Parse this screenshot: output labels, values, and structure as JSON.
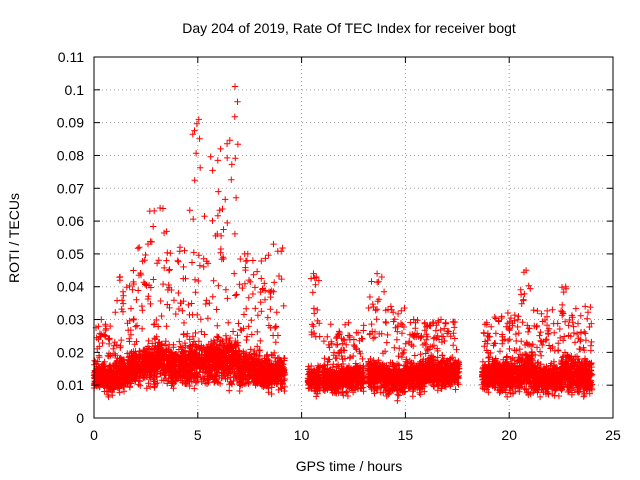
{
  "chart_data": {
    "type": "scatter",
    "title": "Day 204 of 2019, Rate Of TEC Index for receiver bogt",
    "xlabel": "GPS time / hours",
    "ylabel": "ROTI / TECUs",
    "xlim": [
      0,
      25
    ],
    "ylim": [
      0,
      0.11
    ],
    "x_ticks": [
      "0",
      "5",
      "10",
      "15",
      "20",
      "25"
    ],
    "y_ticks": [
      "0",
      "0.01",
      "0.02",
      "0.03",
      "0.04",
      "0.05",
      "0.06",
      "0.07",
      "0.08",
      "0.09",
      "0.1",
      "0.11"
    ],
    "grid": true,
    "marker": "+",
    "color": "#ff0000",
    "series": [
      {
        "clusters": [
          {
            "x": [
              0.0,
              0.6
            ],
            "median": 0.013,
            "spread": 0.008,
            "max": 0.03
          },
          {
            "x": [
              0.6,
              1.0
            ],
            "median": 0.012,
            "spread": 0.008,
            "max": 0.028
          },
          {
            "x": [
              1.0,
              1.8
            ],
            "median": 0.014,
            "spread": 0.009,
            "max": 0.043
          },
          {
            "x": [
              1.8,
              2.6
            ],
            "median": 0.016,
            "spread": 0.01,
            "max": 0.052
          },
          {
            "x": [
              2.6,
              3.5
            ],
            "median": 0.017,
            "spread": 0.011,
            "max": 0.064
          },
          {
            "x": [
              3.5,
              4.6
            ],
            "median": 0.016,
            "spread": 0.01,
            "max": 0.052
          },
          {
            "x": [
              4.6,
              5.6
            ],
            "median": 0.017,
            "spread": 0.011,
            "max": 0.091
          },
          {
            "x": [
              5.6,
              6.4
            ],
            "median": 0.018,
            "spread": 0.012,
            "max": 0.082
          },
          {
            "x": [
              6.4,
              7.0
            ],
            "median": 0.017,
            "spread": 0.012,
            "max": 0.101
          },
          {
            "x": [
              7.0,
              8.0
            ],
            "median": 0.015,
            "spread": 0.009,
            "max": 0.05
          },
          {
            "x": [
              8.0,
              9.2
            ],
            "median": 0.014,
            "spread": 0.009,
            "max": 0.053
          },
          {
            "x": [
              10.3,
              10.9
            ],
            "median": 0.012,
            "spread": 0.007,
            "max": 0.044
          },
          {
            "x": [
              11.0,
              13.0
            ],
            "median": 0.012,
            "spread": 0.007,
            "max": 0.029
          },
          {
            "x": [
              13.2,
              14.0
            ],
            "median": 0.013,
            "spread": 0.008,
            "max": 0.044
          },
          {
            "x": [
              14.0,
              15.0
            ],
            "median": 0.012,
            "spread": 0.008,
            "max": 0.034
          },
          {
            "x": [
              15.0,
              16.0
            ],
            "median": 0.013,
            "spread": 0.008,
            "max": 0.03
          },
          {
            "x": [
              16.0,
              17.6
            ],
            "median": 0.014,
            "spread": 0.008,
            "max": 0.03
          },
          {
            "x": [
              18.7,
              19.3
            ],
            "median": 0.013,
            "spread": 0.008,
            "max": 0.029
          },
          {
            "x": [
              19.3,
              20.5
            ],
            "median": 0.013,
            "spread": 0.009,
            "max": 0.032
          },
          {
            "x": [
              20.5,
              21.2
            ],
            "median": 0.014,
            "spread": 0.01,
            "max": 0.045
          },
          {
            "x": [
              21.2,
              22.5
            ],
            "median": 0.012,
            "spread": 0.008,
            "max": 0.033
          },
          {
            "x": [
              22.5,
              23.0
            ],
            "median": 0.014,
            "spread": 0.01,
            "max": 0.04
          },
          {
            "x": [
              23.0,
              24.0
            ],
            "median": 0.013,
            "spread": 0.009,
            "max": 0.034
          }
        ]
      }
    ]
  }
}
